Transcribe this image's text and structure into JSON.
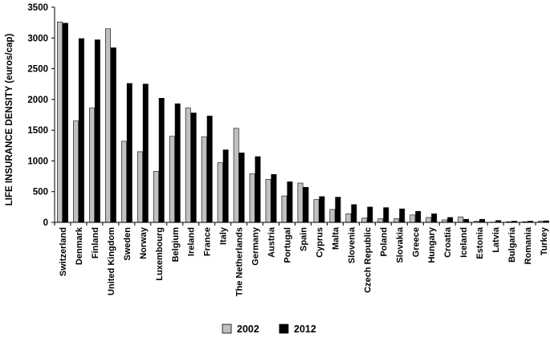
{
  "chart_data": {
    "type": "bar",
    "title": "",
    "xlabel": "",
    "ylabel": "LIFE INSURANCE DENSITY (euros/cap)",
    "ylim": [
      0,
      3500
    ],
    "yticks": [
      "0",
      "500",
      "1000",
      "1500",
      "2000",
      "2500",
      "3000",
      "3500"
    ],
    "grid": false,
    "legend_position": "bottom",
    "categories": [
      "Switzerland",
      "Denmark",
      "Finland",
      "United Kingdom",
      "Sweden",
      "Norway",
      "Luxembourg",
      "Belgium",
      "Ireland",
      "France",
      "Italy",
      "The Netherlands",
      "Germany",
      "Austria",
      "Portugal",
      "Spain",
      "Cyprus",
      "Malta",
      "Slovenia",
      "Czech Republic",
      "Poland",
      "Slovakia",
      "Greece",
      "Hungary",
      "Croatia",
      "Iceland",
      "Estonia",
      "Latvia",
      "Bulgaria",
      "Romania",
      "Turkey"
    ],
    "series": [
      {
        "name": "2002",
        "color": "#c0c0c0",
        "values": [
          3260,
          1650,
          1860,
          3150,
          1320,
          1150,
          830,
          1400,
          1860,
          1390,
          970,
          1530,
          790,
          700,
          430,
          640,
          370,
          210,
          140,
          70,
          60,
          60,
          120,
          80,
          40,
          90,
          20,
          5,
          10,
          10,
          20
        ]
      },
      {
        "name": "2012",
        "color": "#000000",
        "values": [
          3240,
          2990,
          2970,
          2840,
          2260,
          2250,
          2020,
          1930,
          1780,
          1730,
          1180,
          1130,
          1070,
          780,
          660,
          570,
          420,
          410,
          290,
          250,
          240,
          220,
          180,
          140,
          80,
          50,
          50,
          30,
          20,
          20,
          25
        ]
      }
    ]
  }
}
